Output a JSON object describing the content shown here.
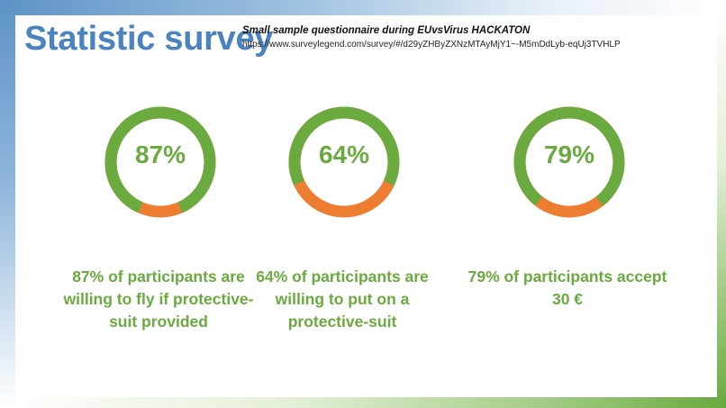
{
  "header": {
    "title": "Statistic survey",
    "subtitle": "Small sample questionnaire during EUvsVirus HACKATON",
    "link": "https://www.surveylegend.com/survey/#/d29yZHByZXNzMTAyMjY1~-M5mDdLyb-eqUj3TVHLP"
  },
  "colors": {
    "title": "#4a83bf",
    "accent_green": "#6aaa3f",
    "accent_orange": "#ed7d31"
  },
  "stats": [
    {
      "percent_label": "87%",
      "value": 87,
      "caption": "87% of participants are willing to fly if protective-suit provided"
    },
    {
      "percent_label": "64%",
      "value": 64,
      "caption": "64% of participants are willing to put on a protective-suit"
    },
    {
      "percent_label": "79%",
      "value": 79,
      "caption": "79% of participants accept 30 €"
    }
  ]
}
